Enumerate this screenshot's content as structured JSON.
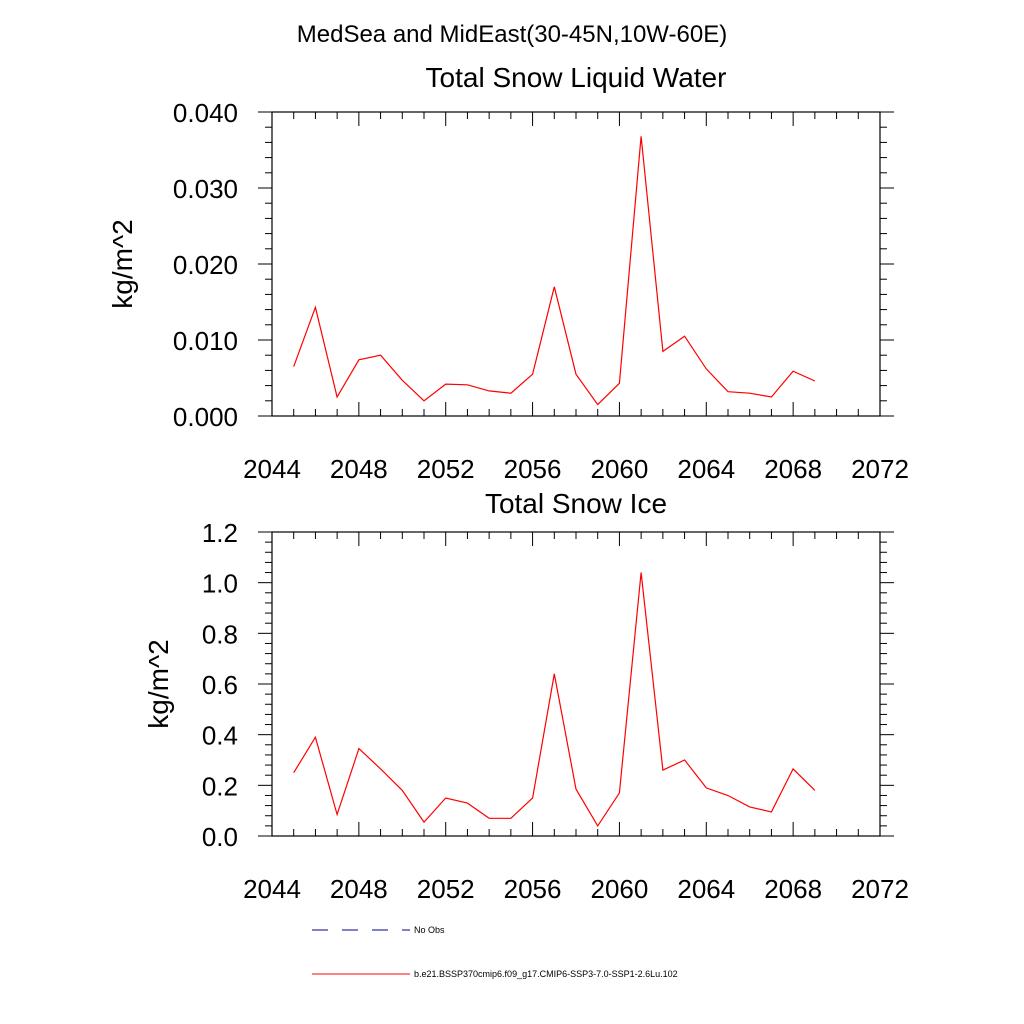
{
  "figure_title": "MedSea and MidEast(30-45N,10W-60E)",
  "colors": {
    "model": "#ff0000",
    "obs": "#00008b",
    "axes": "#000000"
  },
  "legend": {
    "items": [
      {
        "label": "No Obs",
        "style": "dashed",
        "color": "#00008b"
      },
      {
        "label": "b.e21.BSSP370cmip6.f09_g17.CMIP6-SSP3-7.0-SSP1-2.6Lu.102",
        "style": "solid",
        "color": "#ff0000"
      }
    ]
  },
  "chart_data": [
    {
      "type": "line",
      "title": "Total Snow Liquid Water",
      "ylabel": "kg/m^2",
      "xlim": [
        2044,
        2072
      ],
      "ylim": [
        0.0,
        0.04
      ],
      "xticks": [
        2044,
        2048,
        2052,
        2056,
        2060,
        2064,
        2068,
        2072
      ],
      "yticks": [
        "0.000",
        "0.010",
        "0.020",
        "0.030",
        "0.040"
      ],
      "ytick_values": [
        0.0,
        0.01,
        0.02,
        0.03,
        0.04
      ],
      "series": [
        {
          "x": [
            2045,
            2046,
            2047,
            2048,
            2049,
            2050,
            2051,
            2052,
            2053,
            2054,
            2055,
            2056,
            2057,
            2058,
            2059,
            2060,
            2061,
            2062,
            2063,
            2064,
            2065,
            2066,
            2067,
            2068,
            2069
          ],
          "values": [
            0.0065,
            0.0143,
            0.0025,
            0.0074,
            0.008,
            0.0047,
            0.002,
            0.0042,
            0.0041,
            0.0033,
            0.003,
            0.0055,
            0.017,
            0.0055,
            0.0015,
            0.0043,
            0.0368,
            0.0085,
            0.0105,
            0.0062,
            0.0032,
            0.003,
            0.0025,
            0.0059,
            0.0046
          ],
          "color": "#ff0000"
        }
      ]
    },
    {
      "type": "line",
      "title": "Total Snow Ice",
      "ylabel": "kg/m^2",
      "xlim": [
        2044,
        2072
      ],
      "ylim": [
        0.0,
        1.2
      ],
      "xticks": [
        2044,
        2048,
        2052,
        2056,
        2060,
        2064,
        2068,
        2072
      ],
      "yticks": [
        "0.0",
        "0.2",
        "0.4",
        "0.6",
        "0.8",
        "1.0",
        "1.2"
      ],
      "ytick_values": [
        0.0,
        0.2,
        0.4,
        0.6,
        0.8,
        1.0,
        1.2
      ],
      "series": [
        {
          "x": [
            2045,
            2046,
            2047,
            2048,
            2049,
            2050,
            2051,
            2052,
            2053,
            2054,
            2055,
            2056,
            2057,
            2058,
            2059,
            2060,
            2061,
            2062,
            2063,
            2064,
            2065,
            2066,
            2067,
            2068,
            2069
          ],
          "values": [
            0.25,
            0.39,
            0.085,
            0.345,
            0.265,
            0.18,
            0.055,
            0.15,
            0.13,
            0.07,
            0.07,
            0.15,
            0.64,
            0.185,
            0.04,
            0.17,
            1.04,
            0.26,
            0.3,
            0.19,
            0.16,
            0.115,
            0.095,
            0.265,
            0.18
          ],
          "color": "#ff0000"
        }
      ]
    }
  ]
}
